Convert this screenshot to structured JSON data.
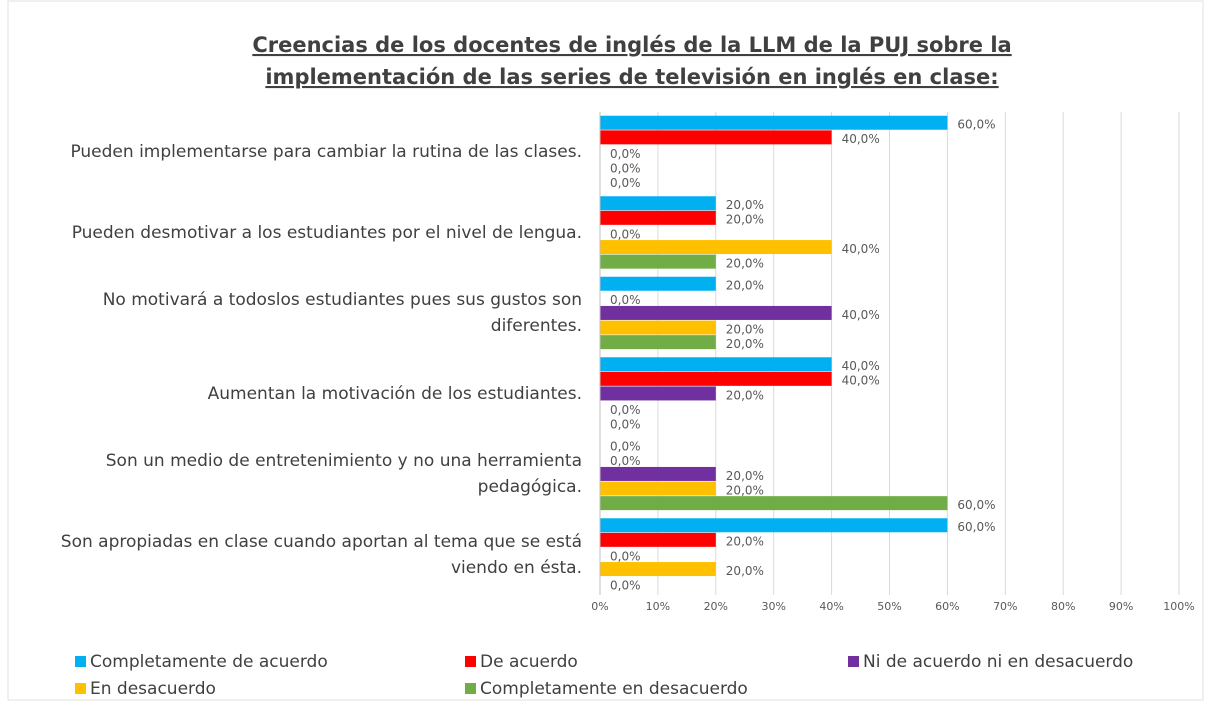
{
  "chart_data": {
    "type": "bar",
    "orientation": "horizontal",
    "title": [
      "Creencias de los docentes de inglés de la LLM de la PUJ  sobre la",
      "implementación de las series de televisión en inglés en clase:"
    ],
    "categories": [
      "Pueden implementarse para cambiar la rutina de las clases.",
      "Pueden desmotivar a los estudiantes por el nivel de lengua.",
      "No motivará a todoslos estudiantes pues sus gustos son diferentes.",
      "Aumentan la motivación de los estudiantes.",
      "Son un medio de entretenimiento y no una herramienta pedagógica.",
      "Son apropiadas en clase cuando aportan al tema que se está viendo en ésta."
    ],
    "series": [
      {
        "name": "Completamente de acuerdo",
        "color": "#00b0f0",
        "values": [
          60,
          20,
          20,
          40,
          0,
          60
        ],
        "value_labels": [
          "60,0%",
          "20,0%",
          "20,0%",
          "40,0%",
          "0,0%",
          "60,0%"
        ]
      },
      {
        "name": "De acuerdo",
        "color": "#ff0000",
        "values": [
          40,
          20,
          0,
          40,
          0,
          20
        ],
        "value_labels": [
          "40,0%",
          "20,0%",
          "0,0%",
          "40,0%",
          "0,0%",
          "20,0%"
        ]
      },
      {
        "name": "Ni de acuerdo ni en desacuerdo",
        "color": "#7030a0",
        "values": [
          0,
          0,
          40,
          20,
          20,
          0
        ],
        "value_labels": [
          "0,0%",
          "0,0%",
          "40,0%",
          "20,0%",
          "20,0%",
          "0,0%"
        ]
      },
      {
        "name": "En desacuerdo",
        "color": "#ffc000",
        "values": [
          0,
          40,
          20,
          0,
          20,
          20
        ],
        "value_labels": [
          "0,0%",
          "40,0%",
          "20,0%",
          "0,0%",
          "20,0%",
          "20,0%"
        ]
      },
      {
        "name": "Completamente en desacuerdo",
        "color": "#70ad47",
        "values": [
          0,
          20,
          20,
          0,
          60,
          0
        ],
        "value_labels": [
          "0,0%",
          "20,0%",
          "20,0%",
          "0,0%",
          "60,0%",
          "0,0%"
        ]
      }
    ],
    "xlim": [
      0,
      100
    ],
    "xticks": [
      {
        "value": 0,
        "label": "0%"
      },
      {
        "value": 10,
        "label": "10%"
      },
      {
        "value": 20,
        "label": "20%"
      },
      {
        "value": 30,
        "label": "30%"
      },
      {
        "value": 40,
        "label": "40%"
      },
      {
        "value": 50,
        "label": "50%"
      },
      {
        "value": 60,
        "label": "60%"
      },
      {
        "value": 70,
        "label": "70%"
      },
      {
        "value": 80,
        "label": "80%"
      },
      {
        "value": 90,
        "label": "90%"
      },
      {
        "value": 100,
        "label": "100%"
      }
    ],
    "grid": true,
    "legend": "bottom"
  }
}
